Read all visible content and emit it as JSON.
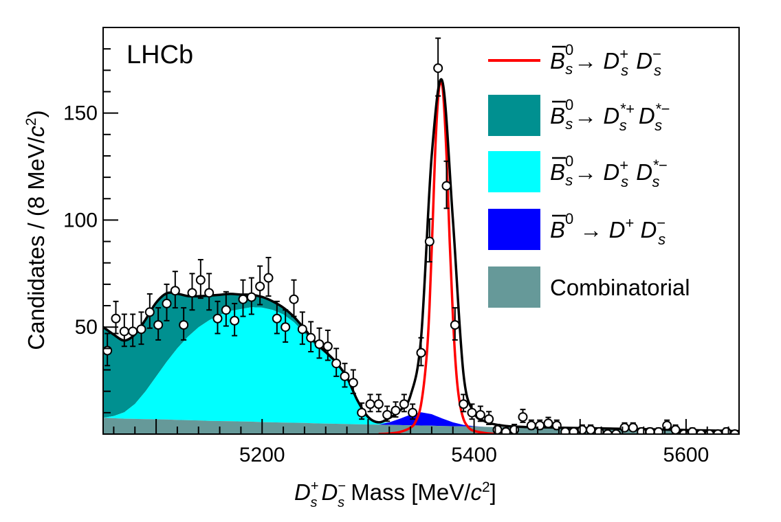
{
  "chart_data": {
    "type": "line",
    "experiment_label": "LHCb",
    "xlabel": "D_s^+ D_s^- Mass [MeV/c^2]",
    "xlabel_parts": {
      "main": "D",
      "sup1": "+",
      "sub1": "s",
      "main2": "D",
      "sup2": "−",
      "sub2": "s",
      "rest": " Mass [MeV/",
      "c": "c",
      "sq": "2",
      "close": "]"
    },
    "ylabel": "Candidates / (8 MeV/c^2)",
    "ylabel_parts": {
      "start": "Candidates / (8 MeV/",
      "c": "c",
      "sq": "2",
      "close": ")"
    },
    "xlim": [
      5050,
      5650
    ],
    "ylim": [
      0,
      190
    ],
    "x_ticks": [
      5200,
      5400,
      5600
    ],
    "y_ticks": [
      50,
      100,
      150
    ],
    "colors": {
      "signal_Bs_DsDs": "#ff0000",
      "Bs_DsstDsst": "#009090",
      "Bs_DsDsst": "#00ffff",
      "Bd_DDs": "#0000ff",
      "combinatorial": "#669999",
      "total_fit": "#000000"
    },
    "legend": [
      {
        "key": "signal",
        "type": "line",
        "color": "#ff0000",
        "parent": "B",
        "bar": true,
        "parent_sub": "s",
        "parent_sup": "0",
        "arrow": "→",
        "d1": "D",
        "d1_sub": "s",
        "d1_sup": "+",
        "d2": "D",
        "d2_sub": "s",
        "d2_sup": "−"
      },
      {
        "key": "dsst_dsst",
        "type": "fill",
        "color": "#009090",
        "parent": "B",
        "bar": true,
        "parent_sub": "s",
        "parent_sup": "0",
        "arrow": "→",
        "d1": "D",
        "d1_sub": "s",
        "d1_sup": "*+",
        "d2": "D",
        "d2_sub": "s",
        "d2_sup": "*−"
      },
      {
        "key": "ds_dsst",
        "type": "fill",
        "color": "#00ffff",
        "parent": "B",
        "bar": true,
        "parent_sub": "s",
        "parent_sup": "0",
        "arrow": "→",
        "d1": "D",
        "d1_sub": "s",
        "d1_sup": "+",
        "d2": "D",
        "d2_sub": "s",
        "d2_sup": "*−"
      },
      {
        "key": "bd_dds",
        "type": "fill",
        "color": "#0000ff",
        "parent": "B",
        "bar": true,
        "parent_sub": "",
        "parent_sup": "0",
        "arrow": "→",
        "d1": "D",
        "d1_sub": "",
        "d1_sup": "+",
        "d2": "D",
        "d2_sub": "s",
        "d2_sup": "−"
      },
      {
        "key": "comb",
        "type": "fill",
        "color": "#669999",
        "text": "Combinatorial"
      }
    ],
    "data_points": {
      "x": [
        5054,
        5062,
        5070,
        5078,
        5086,
        5094,
        5102,
        5110,
        5118,
        5126,
        5134,
        5142,
        5150,
        5158,
        5166,
        5174,
        5182,
        5190,
        5198,
        5206,
        5214,
        5222,
        5230,
        5238,
        5246,
        5254,
        5262,
        5270,
        5278,
        5286,
        5294,
        5302,
        5310,
        5318,
        5326,
        5334,
        5342,
        5350,
        5358,
        5366,
        5374,
        5382,
        5390,
        5398,
        5406,
        5414,
        5422,
        5430,
        5438,
        5446,
        5454,
        5462,
        5470,
        5478,
        5486,
        5494,
        5502,
        5510,
        5518,
        5526,
        5534,
        5542,
        5550,
        5558,
        5566,
        5574,
        5582,
        5590,
        5598,
        5606,
        5614,
        5622,
        5630,
        5638,
        5646
      ],
      "y": [
        39,
        54,
        48,
        48,
        49,
        57,
        51,
        61,
        67,
        51,
        66,
        72,
        66,
        54,
        58,
        53,
        63,
        64,
        69,
        73,
        54,
        50,
        63,
        49,
        45,
        42,
        41,
        33,
        27,
        24,
        10,
        14,
        14,
        9,
        11,
        14,
        10,
        38,
        90,
        171,
        116,
        51,
        14,
        10,
        9,
        7,
        2,
        1,
        2,
        8,
        4,
        4,
        5,
        4,
        1,
        1,
        2,
        2,
        1,
        0,
        0,
        3,
        3,
        1,
        1,
        1,
        4,
        2,
        0,
        1,
        0,
        0,
        0,
        1,
        0
      ],
      "err_up": [
        8,
        8,
        8,
        8,
        8,
        8.5,
        8,
        9,
        9,
        8,
        9,
        9.5,
        9,
        8,
        8.5,
        8,
        9,
        9,
        9.5,
        9.5,
        8,
        8,
        9,
        8,
        7.5,
        7.5,
        7.5,
        7,
        6,
        6,
        4.5,
        4.5,
        4.5,
        4,
        4,
        4.5,
        4,
        7,
        10.5,
        14,
        11.5,
        8,
        4.5,
        4,
        4,
        3.5,
        2.5,
        1.8,
        2.5,
        3.5,
        2.5,
        2.5,
        2.8,
        2.5,
        1.8,
        1.8,
        2.2,
        2.2,
        1.8,
        1.2,
        1.2,
        2.2,
        2.2,
        1.8,
        1.8,
        1.8,
        2.5,
        2.2,
        1.2,
        1.8,
        1.2,
        1.2,
        1.2,
        1.8,
        1.2
      ],
      "err_down": [
        7,
        7,
        7,
        7,
        7,
        7.5,
        7,
        8,
        8,
        7,
        8,
        8.5,
        8,
        7,
        7.5,
        7,
        8,
        8,
        8.5,
        8.5,
        7,
        7,
        8,
        7,
        6.5,
        6.5,
        6.5,
        6,
        5,
        5,
        3,
        3.5,
        3.5,
        3,
        3,
        3.5,
        3,
        6,
        9.5,
        13,
        10.5,
        7,
        3.5,
        3,
        3,
        2.5,
        1.5,
        0.8,
        1.5,
        2.5,
        1.8,
        1.8,
        2,
        1.8,
        0.8,
        0.8,
        1.2,
        1.2,
        0.8,
        0,
        0,
        1.2,
        1.2,
        0.8,
        0.8,
        0.8,
        1.8,
        1.2,
        0,
        0.8,
        0,
        0,
        0,
        0.8,
        0
      ]
    },
    "components": {
      "x": [
        5050,
        5060,
        5070,
        5080,
        5090,
        5100,
        5110,
        5120,
        5130,
        5140,
        5150,
        5160,
        5170,
        5180,
        5190,
        5200,
        5210,
        5220,
        5230,
        5240,
        5250,
        5260,
        5270,
        5280,
        5290,
        5300,
        5310,
        5320,
        5330,
        5340,
        5350,
        5360,
        5370,
        5380,
        5390,
        5400,
        5410,
        5420,
        5430,
        5440,
        5450,
        5460,
        5480,
        5500,
        5550,
        5600,
        5650
      ],
      "combinatorial": [
        7.6,
        7.4,
        7.2,
        7.1,
        7.0,
        6.9,
        6.8,
        6.6,
        6.5,
        6.4,
        6.2,
        6.1,
        6.0,
        5.9,
        5.8,
        5.6,
        5.5,
        5.4,
        5.3,
        5.2,
        5.0,
        4.9,
        4.8,
        4.7,
        4.6,
        4.5,
        4.4,
        4.3,
        4.2,
        4.1,
        4.0,
        3.9,
        3.8,
        3.7,
        3.6,
        3.5,
        3.4,
        3.3,
        3.2,
        3.1,
        3.0,
        2.9,
        2.7,
        2.5,
        2.1,
        1.6,
        1.2
      ],
      "bd_dds": [
        0,
        0,
        0,
        0,
        0,
        0,
        0,
        0,
        0,
        0,
        0,
        0,
        0,
        0,
        0,
        0,
        0,
        0,
        0,
        0,
        0,
        0,
        0,
        0,
        0,
        0,
        0,
        1.2,
        3.0,
        5.0,
        6.2,
        5.4,
        3.5,
        1.8,
        0.7,
        0.2,
        0,
        0,
        0,
        0,
        0,
        0,
        0,
        0,
        0,
        0,
        0
      ],
      "ds_dsst": [
        0,
        1.0,
        3.0,
        7.0,
        13.0,
        20.0,
        27.0,
        33.5,
        39.0,
        43.5,
        47.0,
        49.5,
        51.5,
        52.5,
        53.5,
        53.5,
        52.5,
        50.5,
        47.0,
        42.0,
        36.5,
        32.5,
        28.0,
        21.5,
        11.0,
        3.5,
        0.8,
        0,
        0,
        0,
        0,
        0,
        0,
        0,
        0,
        0,
        0,
        0,
        0,
        0,
        0,
        0,
        0,
        0,
        0,
        0,
        0
      ],
      "dsst_dsst": [
        42.5,
        38.0,
        33.5,
        32.5,
        33.5,
        34.5,
        32.0,
        25.5,
        19.0,
        14.5,
        11.5,
        9.5,
        8.0,
        6.8,
        5.8,
        5.0,
        4.0,
        3.2,
        2.5,
        2.0,
        1.5,
        1.0,
        0.6,
        0.3,
        0.1,
        0,
        0,
        0,
        0,
        0,
        0,
        0,
        0,
        0,
        0,
        0,
        0,
        0,
        0,
        0,
        0,
        0,
        0,
        0,
        0,
        0,
        0
      ],
      "total": [
        50.0,
        46.5,
        43.7,
        46.6,
        53.5,
        61.4,
        65.8,
        65.6,
        64.5,
        64.4,
        64.7,
        65.1,
        65.5,
        65.2,
        65.1,
        64.1,
        62.0,
        59.1,
        54.8,
        49.2,
        43.0,
        38.4,
        33.4,
        26.5,
        15.7,
        8.0,
        5.5,
        7.5,
        11.0,
        18.0,
        45.0,
        130.0,
        165.0,
        100.0,
        28.0,
        10.0,
        6.0,
        4.5,
        3.8,
        3.5,
        3.3,
        3.2,
        3.0,
        2.8,
        2.4,
        1.9,
        1.4
      ]
    },
    "signal_curve": {
      "x": [
        5310,
        5320,
        5330,
        5340,
        5345,
        5350,
        5355,
        5358,
        5361,
        5364,
        5367,
        5369,
        5371,
        5374,
        5377,
        5380,
        5383,
        5386,
        5390,
        5395,
        5400,
        5410,
        5420
      ],
      "y": [
        0,
        0.3,
        1.0,
        3.0,
        6.0,
        14.0,
        35.0,
        60.0,
        100.0,
        140.0,
        162.0,
        164.0,
        158.0,
        130.0,
        90.0,
        55.0,
        30.0,
        16.0,
        7.0,
        3.0,
        1.5,
        0.5,
        0
      ]
    }
  }
}
